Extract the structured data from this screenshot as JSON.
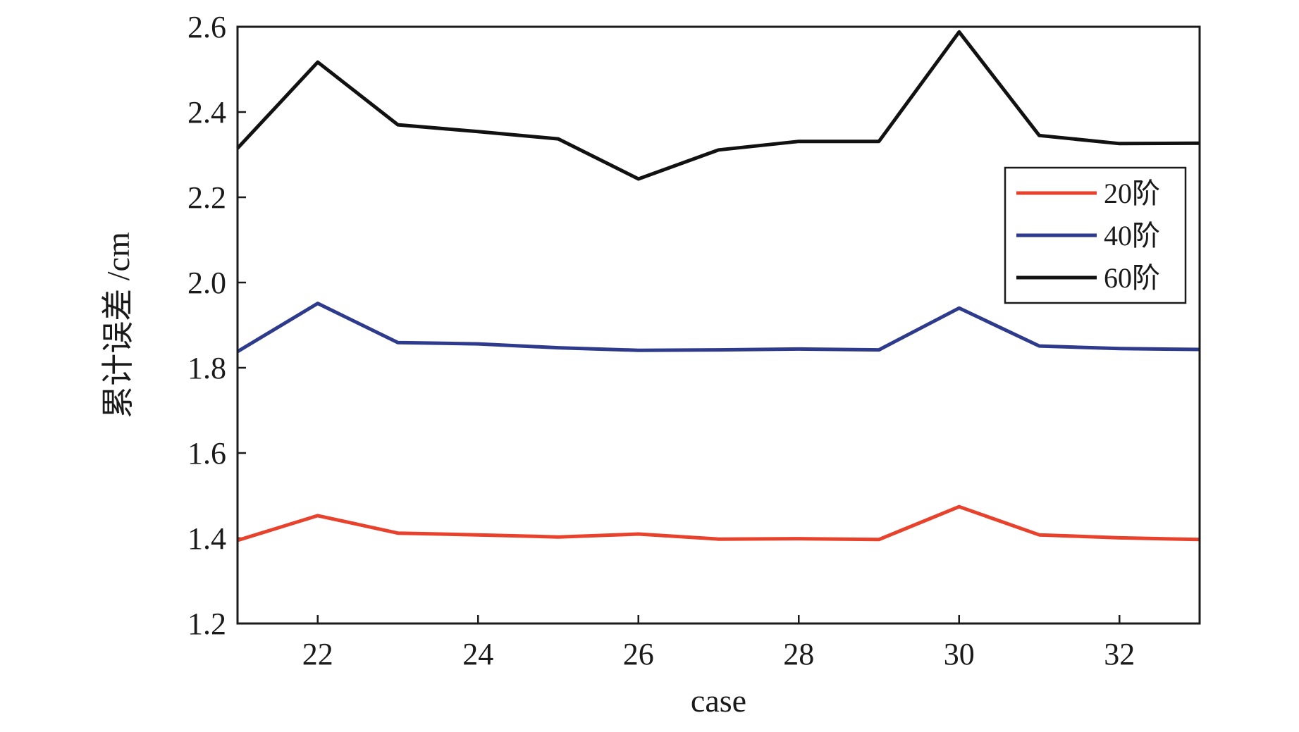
{
  "chart_data": {
    "type": "line",
    "xlabel": "case",
    "ylabel": "累计误差 /cm",
    "xlim": [
      21,
      33
    ],
    "ylim": [
      1.2,
      2.6
    ],
    "xticks": [
      22,
      24,
      26,
      28,
      30,
      32
    ],
    "xtick_labels": [
      "22",
      "24",
      "26",
      "28",
      "30",
      "32"
    ],
    "yticks": [
      1.2,
      1.4,
      1.6,
      1.8,
      2.0,
      2.2,
      2.4,
      2.6
    ],
    "ytick_labels": [
      "1.2",
      "1.4",
      "1.6",
      "1.8",
      "2.0",
      "2.2",
      "2.4",
      "2.6"
    ],
    "grid": false,
    "legend_position": "right",
    "x": [
      21,
      22,
      23,
      24,
      25,
      26,
      27,
      28,
      29,
      30,
      31,
      32,
      33
    ],
    "series": [
      {
        "name": "20阶",
        "color": "#e8412c",
        "values": [
          1.395,
          1.453,
          1.412,
          1.408,
          1.403,
          1.41,
          1.398,
          1.399,
          1.397,
          1.474,
          1.408,
          1.401,
          1.397
        ]
      },
      {
        "name": "40阶",
        "color": "#2e3a8c",
        "values": [
          1.838,
          1.951,
          1.859,
          1.856,
          1.847,
          1.841,
          1.842,
          1.844,
          1.842,
          1.94,
          1.851,
          1.845,
          1.843
        ]
      },
      {
        "name": "60阶",
        "color": "#111111",
        "values": [
          2.315,
          2.517,
          2.37,
          2.354,
          2.337,
          2.243,
          2.311,
          2.331,
          2.331,
          2.588,
          2.345,
          2.326,
          2.327
        ]
      }
    ]
  }
}
